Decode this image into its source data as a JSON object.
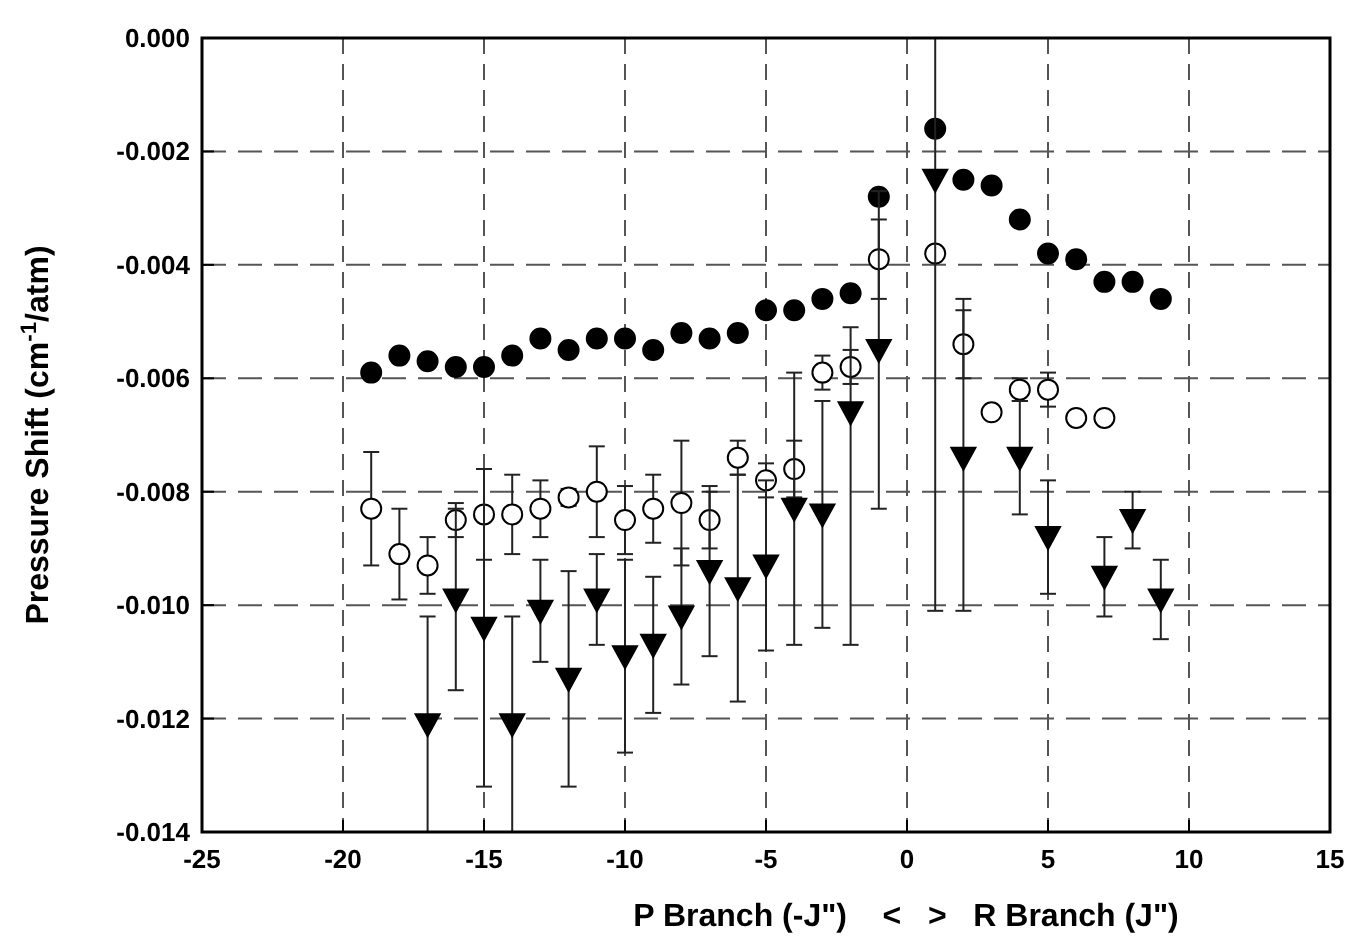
{
  "chart_data": {
    "type": "scatter",
    "xlabel": "P Branch (-J\")    <   >   R Branch (J\")",
    "ylabel": "Pressure Shift (cm$^{-1}$/atm)",
    "xlim": [
      -25,
      15
    ],
    "xticks": [
      -25,
      -20,
      -15,
      -10,
      -5,
      0,
      5,
      10,
      15
    ],
    "ylim": [
      -0.014,
      0
    ],
    "yticks": [
      {
        "value": -0.014,
        "label": "-0.014"
      },
      {
        "value": -0.012,
        "label": "-0.012"
      },
      {
        "value": -0.01,
        "label": "-0.010"
      },
      {
        "value": -0.008,
        "label": "-0.008"
      },
      {
        "value": -0.006,
        "label": "-0.006"
      },
      {
        "value": -0.004,
        "label": "-0.004"
      },
      {
        "value": -0.002,
        "label": "-0.002"
      },
      {
        "value": 0,
        "label": "0.000"
      }
    ],
    "grid": true,
    "series": [
      {
        "marker": "circle",
        "color": "#000000",
        "x": [
          -19,
          -18,
          -17,
          -16,
          -15,
          -14,
          -13,
          -12,
          -11,
          -10,
          -9,
          -8,
          -7,
          -6,
          -5,
          -4,
          -3,
          -2,
          -1,
          1,
          2,
          3,
          4,
          5,
          6,
          7,
          8,
          9
        ],
        "values": [
          -0.0059,
          -0.0056,
          -0.0057,
          -0.0058,
          -0.0058,
          -0.0056,
          -0.0053,
          -0.0055,
          -0.0053,
          -0.0053,
          -0.0055,
          -0.0052,
          -0.0053,
          -0.0052,
          -0.0048,
          -0.0048,
          -0.0046,
          -0.0045,
          -0.0028,
          -0.0016,
          -0.0025,
          -0.0026,
          -0.0032,
          -0.0038,
          -0.0039,
          -0.0043,
          -0.0043,
          -0.0046
        ]
      },
      {
        "marker": "circle",
        "color": "#ffffff",
        "x": [
          -19,
          -18,
          -17,
          -16,
          -15,
          -14,
          -13,
          -12,
          -11,
          -10,
          -9,
          -8,
          -7,
          -6,
          -5,
          -4,
          -3,
          -2,
          -1,
          1,
          2,
          3,
          4,
          5,
          6,
          7
        ],
        "values": [
          -0.0083,
          -0.0091,
          -0.0093,
          -0.0085,
          -0.0084,
          -0.0084,
          -0.0083,
          -0.0081,
          -0.008,
          -0.0085,
          -0.0083,
          -0.0082,
          -0.0085,
          -0.0074,
          -0.0078,
          -0.0076,
          -0.0059,
          -0.0058,
          -0.0039,
          -0.0038,
          -0.0054,
          -0.0066,
          -0.0062,
          -0.0062,
          -0.0067,
          -0.0067
        ],
        "errors": [
          0.001,
          0.0008,
          0.0005,
          0.0003,
          0.0008,
          0.0007,
          0.0005,
          0.00015,
          0.0008,
          0.0006,
          0.0006,
          0.0011,
          0.0005,
          0.0003,
          0.0003,
          0.0005,
          0.0003,
          0.0003,
          0.0007,
          null,
          0.0006,
          null,
          0.0002,
          0.0003,
          null,
          0.0001
        ]
      },
      {
        "marker": "triangle",
        "color": "#000000",
        "x": [
          -17,
          -16,
          -15,
          -14,
          -13,
          -12,
          -11,
          -10,
          -9,
          -8,
          -7,
          -6,
          -5,
          -4,
          -3,
          -2,
          -1,
          1,
          2,
          4,
          5,
          7,
          8,
          9
        ],
        "values": [
          -0.0121,
          -0.0099,
          -0.0104,
          -0.0121,
          -0.0101,
          -0.0113,
          -0.0099,
          -0.0109,
          -0.0107,
          -0.0102,
          -0.0094,
          -0.0097,
          -0.0093,
          -0.0083,
          -0.0084,
          -0.0066,
          -0.0055,
          -0.0025,
          -0.0074,
          -0.0074,
          -0.0088,
          -0.0095,
          -0.0085,
          -0.0099
        ],
        "errors": [
          0.0019,
          0.0016,
          0.0028,
          0.0019,
          0.0009,
          0.0019,
          0.0008,
          0.0017,
          0.0012,
          0.0012,
          0.0015,
          0.002,
          0.0015,
          0.0024,
          0.002,
          [
            -0.0107,
            -0.0051
          ],
          0.0028,
          [
            -0.0101,
            0
          ],
          [
            -0.0101,
            -0.0046
          ],
          0.001,
          0.001,
          0.0007,
          0.0005,
          0.0007
        ]
      }
    ]
  }
}
